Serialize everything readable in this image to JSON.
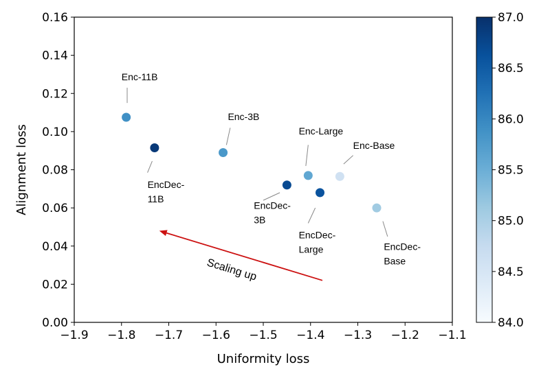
{
  "chart_data": {
    "type": "scatter",
    "xlabel": "Uniformity loss",
    "ylabel": "Alignment loss",
    "xlim": [
      -1.9,
      -1.1
    ],
    "ylim": [
      0.0,
      0.16
    ],
    "xticks": [
      "−1.9",
      "−1.8",
      "−1.7",
      "−1.6",
      "−1.5",
      "−1.4",
      "−1.3",
      "−1.2",
      "−1.1"
    ],
    "yticks": [
      "0.00",
      "0.02",
      "0.04",
      "0.06",
      "0.08",
      "0.10",
      "0.12",
      "0.14",
      "0.16"
    ],
    "grid": false,
    "colorbar": {
      "range": [
        84.0,
        87.0
      ],
      "ticks": [
        "84.0",
        "84.5",
        "85.0",
        "85.5",
        "86.0",
        "86.5",
        "87.0"
      ],
      "colormap": "Blues"
    },
    "points": [
      {
        "label": "Enc-11B",
        "x": -1.79,
        "y": 0.1075,
        "value": 85.9
      },
      {
        "label": "EncDec-11B",
        "x": -1.73,
        "y": 0.0915,
        "value": 86.9
      },
      {
        "label": "Enc-3B",
        "x": -1.585,
        "y": 0.089,
        "value": 85.8
      },
      {
        "label": "EncDec-3B",
        "x": -1.45,
        "y": 0.072,
        "value": 86.7
      },
      {
        "label": "Enc-Large",
        "x": -1.405,
        "y": 0.077,
        "value": 85.6
      },
      {
        "label": "EncDec-Large",
        "x": -1.38,
        "y": 0.068,
        "value": 86.6
      },
      {
        "label": "Enc-Base",
        "x": -1.338,
        "y": 0.0765,
        "value": 84.6
      },
      {
        "label": "EncDec-Base",
        "x": -1.26,
        "y": 0.06,
        "value": 85.1
      }
    ],
    "annotations": [
      {
        "lines": [
          "Enc-11B"
        ],
        "tx": -1.8,
        "ty": 0.127,
        "lx1": -1.788,
        "ly1": 0.115,
        "lx2": -1.788,
        "ly2": 0.123
      },
      {
        "lines": [
          "EncDec-",
          "11B"
        ],
        "tx": -1.745,
        "ty": 0.0705,
        "lx1": -1.735,
        "ly1": 0.0845,
        "lx2": -1.745,
        "ly2": 0.0785
      },
      {
        "lines": [
          "Enc-3B"
        ],
        "tx": -1.575,
        "ty": 0.106,
        "lx1": -1.57,
        "ly1": 0.102,
        "lx2": -1.578,
        "ly2": 0.093
      },
      {
        "lines": [
          "EncDec-",
          "3B"
        ],
        "tx": -1.52,
        "ty": 0.0595,
        "lx1": -1.465,
        "ly1": 0.068,
        "lx2": -1.5,
        "ly2": 0.064
      },
      {
        "lines": [
          "Enc-Large"
        ],
        "tx": -1.425,
        "ty": 0.0985,
        "lx1": -1.405,
        "ly1": 0.093,
        "lx2": -1.41,
        "ly2": 0.082
      },
      {
        "lines": [
          "EncDec-",
          "Large"
        ],
        "tx": -1.425,
        "ty": 0.044,
        "lx1": -1.39,
        "ly1": 0.06,
        "lx2": -1.405,
        "ly2": 0.052
      },
      {
        "lines": [
          "Enc-Base"
        ],
        "tx": -1.31,
        "ty": 0.091,
        "lx1": -1.31,
        "ly1": 0.0875,
        "lx2": -1.33,
        "ly2": 0.083
      },
      {
        "lines": [
          "EncDec-",
          "Base"
        ],
        "tx": -1.245,
        "ty": 0.038,
        "lx1": -1.247,
        "ly1": 0.053,
        "lx2": -1.237,
        "ly2": 0.045
      }
    ],
    "trend_arrow": {
      "label": "Scaling up",
      "from": [
        -1.375,
        0.022
      ],
      "to": [
        -1.72,
        0.048
      ],
      "color": "#cc1111"
    }
  }
}
